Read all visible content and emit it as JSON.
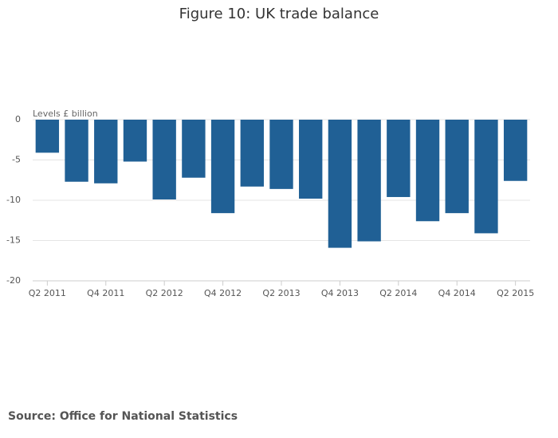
{
  "chart_data": {
    "type": "bar",
    "title": "Figure 10: UK trade balance",
    "y_label": "Levels £ billion",
    "categories": [
      "Q2 2011",
      null,
      "Q4 2011",
      null,
      "Q2 2012",
      null,
      "Q4 2012",
      null,
      "Q2 2013",
      null,
      "Q4 2013",
      null,
      "Q2 2014",
      null,
      "Q4 2014",
      null,
      "Q2 2015"
    ],
    "values": [
      -4.1,
      -7.7,
      -7.9,
      -5.2,
      -9.9,
      -7.2,
      -11.6,
      -8.3,
      -8.6,
      -9.8,
      -15.9,
      -15.1,
      -9.6,
      -12.6,
      -11.6,
      -14.1,
      -7.6
    ],
    "color": "#206095",
    "ylim": [
      -20,
      0
    ],
    "yticks": [
      0,
      -5,
      -10,
      -15,
      -20
    ],
    "grid": true
  },
  "source": "Source: Office for National Statistics"
}
